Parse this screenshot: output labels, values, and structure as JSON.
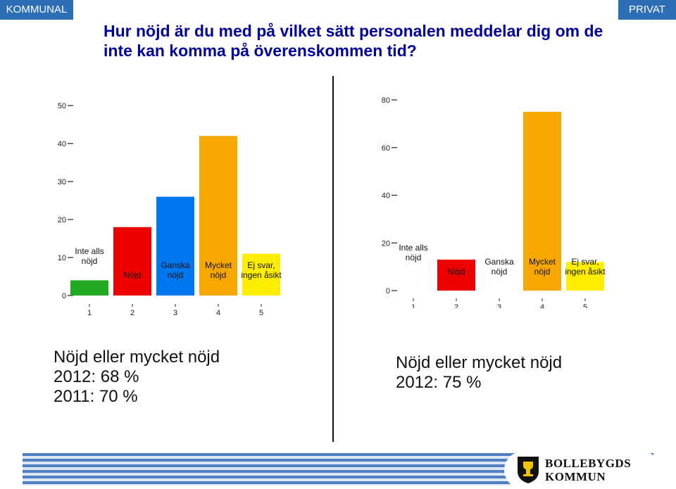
{
  "tags": {
    "left": "KOMMUNAL",
    "right": "PRIVAT"
  },
  "title": "Hur nöjd är du med på vilket sätt personalen meddelar dig om de inte kan komma på överenskommen tid?",
  "colors": {
    "accent": "#00009a",
    "tag_bg": "#2c6fb7",
    "bar_inte_alls": "#22aa22",
    "bar_nojd": "#ee0000",
    "bar_ganska": "#0077ee",
    "bar_mycket": "#f7a800",
    "bar_ej_svar": "#ffee00"
  },
  "chart_data": [
    {
      "type": "bar",
      "categories": [
        "Inte alls nöjd",
        "Nöjd",
        "Ganska nöjd",
        "Mycket nöjd",
        "Ej svar, ingen åsikt"
      ],
      "x_ticks": [
        "1",
        "2",
        "3",
        "4",
        "5"
      ],
      "values": [
        4,
        18,
        26,
        42,
        11
      ],
      "ylim": [
        0,
        50
      ],
      "yticks": [
        0,
        10,
        20,
        30,
        40,
        50
      ],
      "xlabel": "",
      "ylabel": "",
      "title": ""
    },
    {
      "type": "bar",
      "categories": [
        "Inte alls nöjd",
        "Nöjd",
        "Ganska nöjd",
        "Mycket nöjd",
        "Ej svar, ingen åsikt"
      ],
      "x_ticks": [
        "1",
        "2",
        "3",
        "4",
        "5"
      ],
      "values": [
        0,
        13,
        0,
        75,
        12
      ],
      "ylim": [
        0,
        80
      ],
      "yticks": [
        0,
        20,
        40,
        60,
        80
      ],
      "xlabel": "",
      "ylabel": "",
      "title": ""
    }
  ],
  "summary_left": {
    "line1": "Nöjd eller mycket nöjd",
    "line2": "2012: 68 %",
    "line3": "2011: 70 %"
  },
  "summary_right": {
    "line1": "Nöjd eller mycket nöjd",
    "line2": "2012: 75 %"
  },
  "logo": {
    "line1": "BOLLEBYGDS",
    "line2": "KOMMUN"
  }
}
